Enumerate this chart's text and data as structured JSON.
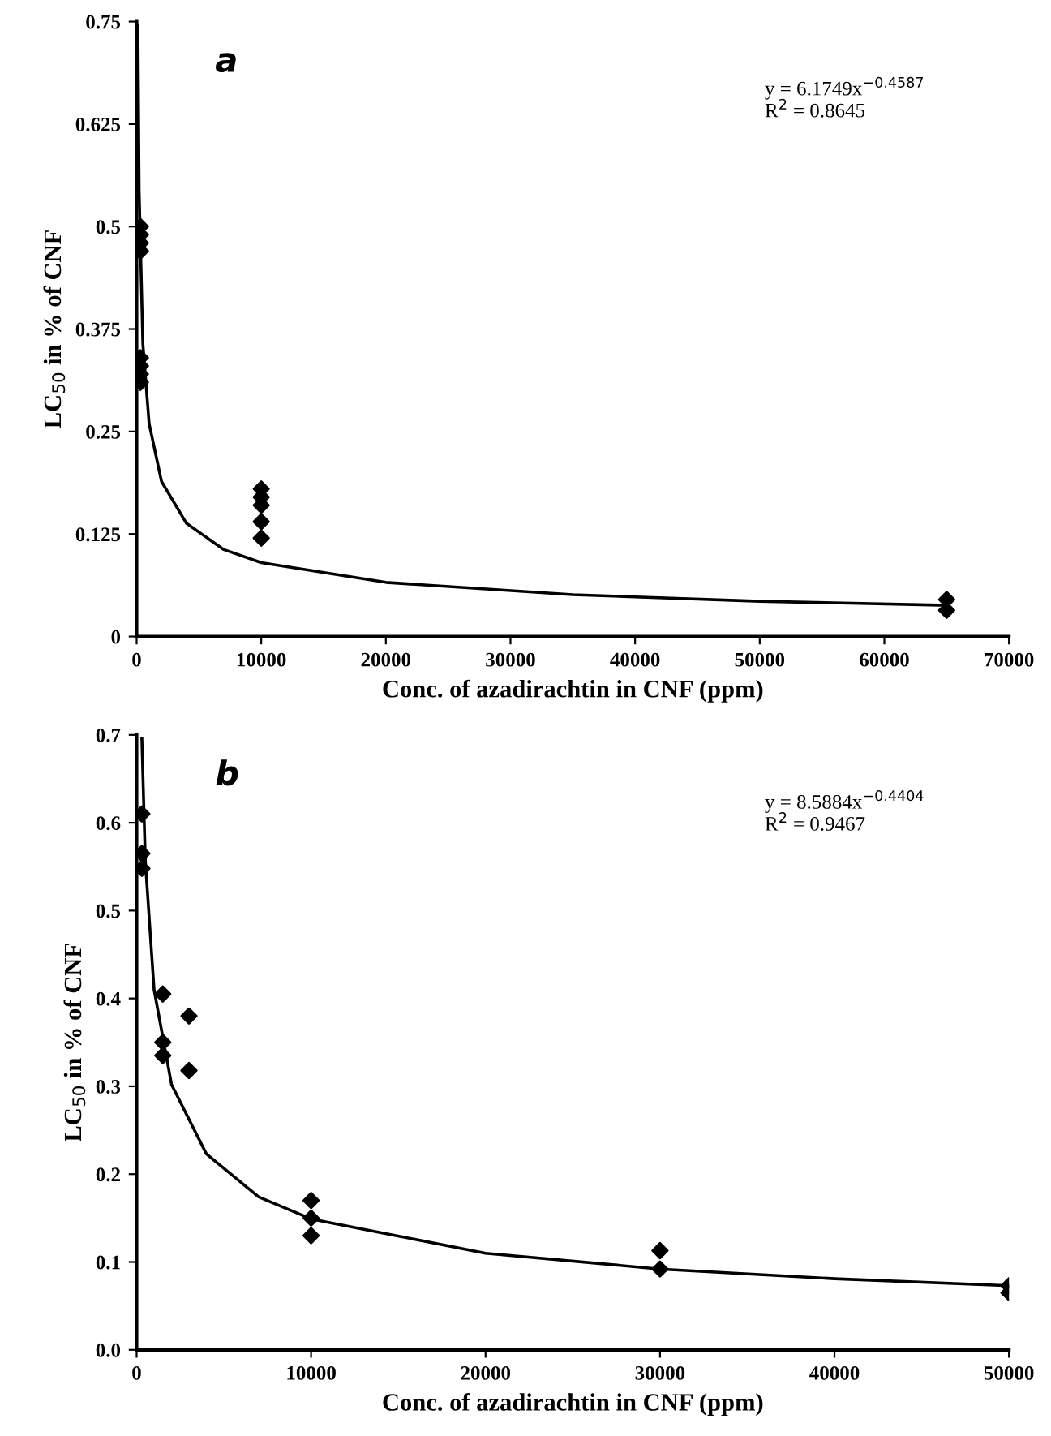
{
  "chart_data": [
    {
      "type": "scatter",
      "xlabel": "Conc. of azadirachtin in CNF (ppm)",
      "ylabel": "LC$_{50}$ in % of CNF",
      "annotations": [
        "a",
        "y = 6.1749x$^{−0.4587}$\nR$^{2}$ = 0.8645"
      ],
      "grid": false,
      "legend": false,
      "xlim": [
        0,
        70000
      ],
      "xticks": [
        0,
        10000,
        20000,
        30000,
        40000,
        50000,
        60000,
        70000
      ],
      "ylim": [
        0,
        0.75
      ],
      "yticks": [
        0,
        0.125,
        0.25,
        0.375,
        0.5,
        0.625,
        0.75
      ],
      "series": [
        {
          "marker": "diamond",
          "color": "#000000",
          "x": [
            300,
            300,
            300,
            300,
            300,
            300,
            300,
            300,
            10000,
            10000,
            10000,
            10000,
            10000,
            65000,
            65000
          ],
          "values": [
            0.5,
            0.49,
            0.48,
            0.47,
            0.34,
            0.33,
            0.32,
            0.31,
            0.18,
            0.17,
            0.16,
            0.14,
            0.12,
            0.045,
            0.032
          ]
        },
        {
          "type": "line",
          "marker": "none",
          "color": "#000000",
          "x": [
            100,
            200,
            500,
            1000,
            2000,
            4000,
            7000,
            10000,
            20000,
            35000,
            50000,
            65000
          ],
          "values": [
            0.746,
            0.543,
            0.357,
            0.26,
            0.189,
            0.138,
            0.106,
            0.09,
            0.066,
            0.051,
            0.043,
            0.038
          ]
        }
      ]
    },
    {
      "type": "scatter",
      "xlabel": "Conc. of azadirachtin in CNF (ppm)",
      "ylabel": "LC$_{50}$ in % of CNF",
      "annotations": [
        "b",
        "y = 8.5884x$^{−0.4404}$\nR$^{2}$ = 0.9467"
      ],
      "grid": false,
      "legend": false,
      "xlim": [
        0,
        50000
      ],
      "xticks": [
        0,
        10000,
        20000,
        30000,
        40000,
        50000
      ],
      "ylim": [
        0,
        0.7
      ],
      "yticks": [
        {
          "value": 0,
          "label": "0.0"
        },
        0.1,
        0.2,
        0.3,
        0.4,
        0.5,
        0.6,
        0.7
      ],
      "series": [
        {
          "marker": "diamond",
          "color": "#000000",
          "x": [
            300,
            300,
            300,
            1500,
            1500,
            1500,
            3000,
            3000,
            10000,
            10000,
            10000,
            30000,
            30000,
            50000,
            50000
          ],
          "values": [
            0.61,
            0.565,
            0.548,
            0.405,
            0.35,
            0.335,
            0.38,
            0.318,
            0.17,
            0.15,
            0.13,
            0.113,
            0.092,
            0.073,
            0.065
          ]
        },
        {
          "type": "line",
          "marker": "none",
          "color": "#000000",
          "x": [
            300,
            500,
            1000,
            2000,
            4000,
            7000,
            10000,
            20000,
            30000,
            40000,
            50000
          ],
          "values": [
            0.696,
            0.556,
            0.41,
            0.302,
            0.223,
            0.174,
            0.149,
            0.11,
            0.092,
            0.081,
            0.073
          ]
        }
      ]
    }
  ]
}
